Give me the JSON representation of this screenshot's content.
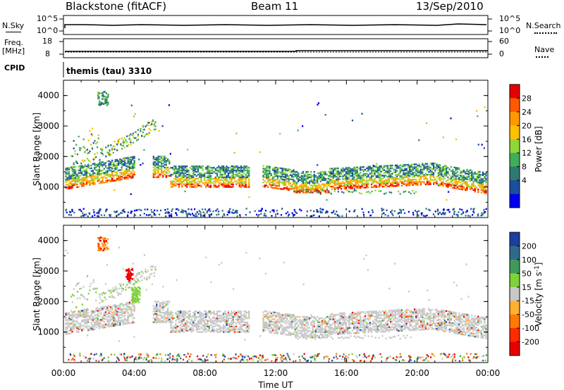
{
  "header": {
    "title": "Blackstone (fitACF)",
    "beam": "Beam 11",
    "date": "13/Sep/2010"
  },
  "top_panel": {
    "left_label": "N.Sky",
    "left_ticks": [
      "10^5",
      "10^0"
    ],
    "right_label": "N.Search",
    "right_ticks": [
      "10^5",
      "10^0"
    ]
  },
  "freq_panel": {
    "left_label_1": "Freq.",
    "left_label_2": "[MHz]",
    "left_ticks": [
      "18",
      "8"
    ],
    "right_label": "Nave",
    "right_ticks": [
      "60",
      "0"
    ]
  },
  "cpid": {
    "label": "CPID",
    "text": "themis (tau) 3310"
  },
  "chart_data": [
    {
      "type": "heatmap",
      "ylabel": "Slant Range [km]",
      "xlabel": "",
      "y_ticks": [
        "4000",
        "3000",
        "2000",
        "1000"
      ],
      "ylim": [
        0,
        4500
      ],
      "colorbar": {
        "label": "Power [dB]",
        "ticks": [
          "28",
          "24",
          "20",
          "16",
          "12",
          "8",
          "4"
        ],
        "colors": [
          "#e80000",
          "#ff5a00",
          "#ff9900",
          "#ffc000",
          "#8fd63a",
          "#3fae5a",
          "#2f7a70",
          "#1a4fa0",
          "#0000ee"
        ]
      }
    },
    {
      "type": "heatmap",
      "ylabel": "Slant Range [km]",
      "xlabel": "Time UT",
      "x_ticks": [
        "00:00",
        "04:00",
        "08:00",
        "12:00",
        "16:00",
        "20:00",
        "00:00"
      ],
      "y_ticks": [
        "4000",
        "3000",
        "2000",
        "1000"
      ],
      "ylim": [
        0,
        4500
      ],
      "colorbar": {
        "label": "Velocity [m s",
        "label_sup": "-1",
        "label_end": "]",
        "ticks": [
          "200",
          "100",
          "50",
          "15",
          "-15",
          "-50",
          "-100",
          "-200"
        ],
        "colors": [
          "#1a3fa0",
          "#2f6a8a",
          "#3f9a5a",
          "#7fd23a",
          "#c8c8c8",
          "#ffb030",
          "#ff7a00",
          "#ff2a00",
          "#e80000"
        ]
      }
    }
  ]
}
